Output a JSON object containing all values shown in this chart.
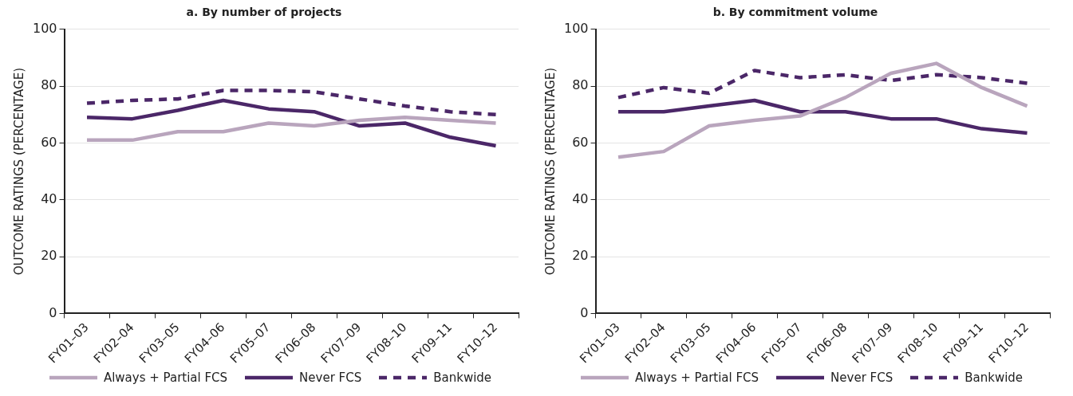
{
  "chart_data": [
    {
      "type": "line",
      "title": "a. By number of projects",
      "ylabel": "OUTCOME RATINGS (PERCENTAGE)",
      "categories": [
        "FY01–03",
        "FY02–04",
        "FY03–05",
        "FY04–06",
        "FY05–07",
        "FY06–08",
        "FY07–09",
        "FY08–10",
        "FY09–11",
        "FY10–12"
      ],
      "ylim": [
        0,
        100
      ],
      "yticks": [
        0,
        20,
        40,
        60,
        80,
        100
      ],
      "grid": "y",
      "legend": "bottom",
      "marker": "none",
      "series": [
        {
          "name": "Always + Partial FCS",
          "color": "#b9a5bd",
          "line_style": "solid",
          "values": [
            61,
            61,
            64,
            64,
            67,
            66,
            68,
            69,
            68,
            67
          ]
        },
        {
          "name": "Never FCS",
          "color": "#4b2768",
          "line_style": "solid",
          "values": [
            69,
            68.5,
            71.5,
            75,
            72,
            71,
            66,
            67,
            62,
            59
          ]
        },
        {
          "name": "Bankwide",
          "color": "#4b2768",
          "line_style": "dashed",
          "values": [
            74,
            75,
            75.5,
            78.5,
            78.5,
            78,
            75.5,
            73,
            71,
            70
          ]
        }
      ]
    },
    {
      "type": "line",
      "title": "b. By commitment volume",
      "ylabel": "OUTCOME RATINGS (PERCENTAGE)",
      "categories": [
        "FY01–03",
        "FY02–04",
        "FY03–05",
        "FY04–06",
        "FY05–07",
        "FY06–08",
        "FY07–09",
        "FY08–10",
        "FY09–11",
        "FY10–12"
      ],
      "ylim": [
        0,
        100
      ],
      "yticks": [
        0,
        20,
        40,
        60,
        80,
        100
      ],
      "grid": "y",
      "legend": "bottom",
      "marker": "none",
      "series": [
        {
          "name": "Always + Partial FCS",
          "color": "#b9a5bd",
          "line_style": "solid",
          "values": [
            55,
            57,
            66,
            68,
            69.5,
            76,
            84.5,
            88,
            79.5,
            73
          ]
        },
        {
          "name": "Never FCS",
          "color": "#4b2768",
          "line_style": "solid",
          "values": [
            71,
            71,
            73,
            75,
            71,
            71,
            68.5,
            68.5,
            65,
            63.5
          ]
        },
        {
          "name": "Bankwide",
          "color": "#4b2768",
          "line_style": "dashed",
          "values": [
            76,
            79.5,
            77.5,
            85.5,
            83,
            84,
            82,
            84,
            83,
            81
          ]
        }
      ]
    }
  ]
}
